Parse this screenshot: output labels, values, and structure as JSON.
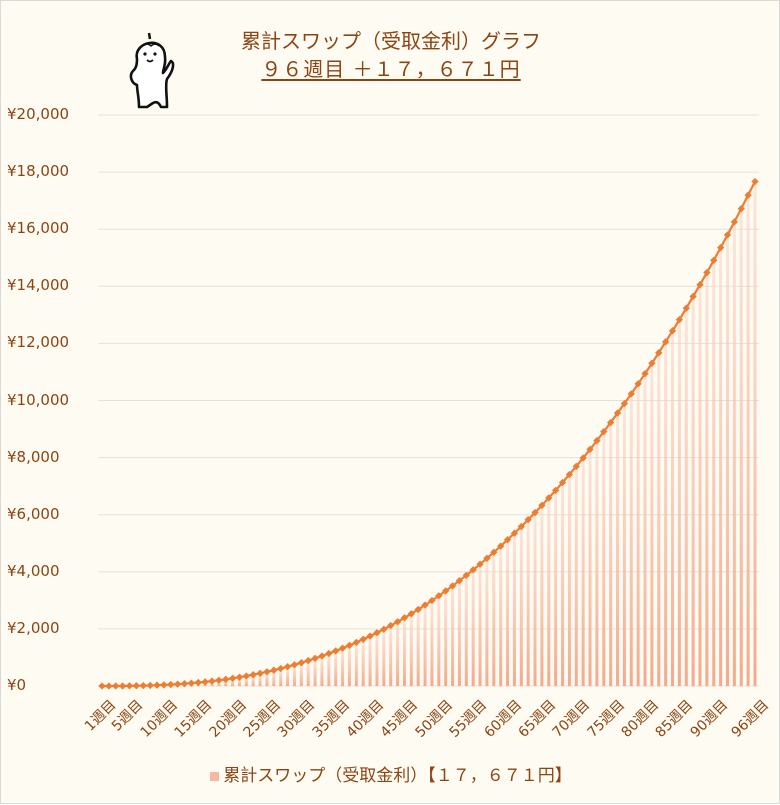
{
  "chart_data": {
    "type": "bar+line",
    "title": "累計スワップ（受取金利）グラフ",
    "subtitle": "９６週目 ＋１７，６７１円",
    "xlabel": "",
    "ylabel": "",
    "ylim": [
      0,
      20000
    ],
    "y_ticks": [
      "¥0",
      "¥2,000",
      "¥4,000",
      "¥6,000",
      "¥8,000",
      "¥10,000",
      "¥12,000",
      "¥14,000",
      "¥16,000",
      "¥18,000",
      "¥20,000"
    ],
    "x_tick_labels": [
      "1週目",
      "5週目",
      "10週目",
      "15週目",
      "20週目",
      "25週目",
      "30週目",
      "35週目",
      "40週目",
      "45週目",
      "50週目",
      "55週目",
      "60週目",
      "65週目",
      "70週目",
      "75週目",
      "80週目",
      "85週目",
      "90週目",
      "96週目"
    ],
    "x_tick_weeks": [
      1,
      5,
      10,
      15,
      20,
      25,
      30,
      35,
      40,
      45,
      50,
      55,
      60,
      65,
      70,
      75,
      80,
      85,
      90,
      96
    ],
    "legend": [
      "累計スワップ（受取金利）【１７，６７１円】"
    ],
    "legend_position": "bottom",
    "grid": true,
    "series": [
      {
        "name": "累計スワップ（受取金利）",
        "values": [
          0,
          0,
          1,
          2,
          5,
          8,
          13,
          20,
          29,
          39,
          51,
          65,
          81,
          100,
          121,
          145,
          171,
          200,
          233,
          269,
          308,
          350,
          396,
          445,
          497,
          553,
          613,
          677,
          744,
          815,
          890,
          969,
          1051,
          1138,
          1229,
          1325,
          1424,
          1528,
          1636,
          1749,
          1866,
          1988,
          2117,
          2250,
          2389,
          2532,
          2681,
          2835,
          2995,
          3161,
          3331,
          3506,
          3690,
          3877,
          4068,
          4266,
          4473,
          4683,
          4898,
          5123,
          5351,
          5586,
          5826,
          6075,
          6328,
          6588,
          6853,
          7128,
          7408,
          7694,
          7987,
          8288,
          8595,
          8910,
          9228,
          9560,
          9892,
          10233,
          10585,
          10940,
          11304,
          11673,
          12055,
          12440,
          12831,
          13232,
          13644,
          14057,
          14482,
          14911,
          15354,
          15801,
          16256,
          16719,
          17192,
          17671
        ]
      }
    ]
  },
  "colors": {
    "background": "#fefbf2",
    "text": "#8b4513",
    "line": "#ed7d31",
    "bar": "#f6b8a2",
    "grid": "#e6e2da"
  },
  "header": {
    "title": "累計スワップ（受取金利）グラフ",
    "subtitle": "９６週目 ＋１７，６７１円"
  },
  "legend": {
    "label": "累計スワップ（受取金利）【１７，６７１円】"
  },
  "mascot": {
    "icon": "mascot-character-icon"
  }
}
